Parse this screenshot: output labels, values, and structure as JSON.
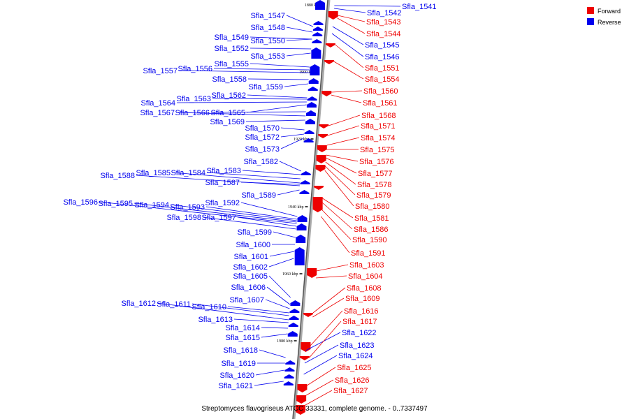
{
  "caption": "Streptomyces flavogriseus ATCC 33331, complete genome. - 0..7337497",
  "legend": [
    {
      "label": "Forward",
      "color": "#ee0000"
    },
    {
      "label": "Reverse",
      "color": "#0000ee"
    }
  ],
  "colors": {
    "forward": "#ee0000",
    "reverse": "#0000ee",
    "backbone": "#888888"
  },
  "ticks": [
    "1880 kbp",
    "1900 kbp",
    "1920 kbp",
    "1940 kbp",
    "1960 kbp",
    "1980 kbp"
  ],
  "genes_reverse_left": [
    "Sfla_1547",
    "Sfla_1548",
    "Sfla_1549",
    "Sfla_1550",
    "Sfla_1552",
    "Sfla_1553",
    "Sfla_1555",
    "Sfla_1556",
    "Sfla_1557",
    "Sfla_1558",
    "Sfla_1559",
    "Sfla_1562",
    "Sfla_1563",
    "Sfla_1564",
    "Sfla_1565",
    "Sfla_1566",
    "Sfla_1567",
    "Sfla_1569",
    "Sfla_1570",
    "Sfla_1572",
    "Sfla_1573",
    "Sfla_1582",
    "Sfla_1583",
    "Sfla_1584",
    "Sfla_1585",
    "Sfla_1588",
    "Sfla_1587",
    "Sfla_1589",
    "Sfla_1592",
    "Sfla_1593",
    "Sfla_1594",
    "Sfla_1595",
    "Sfla_1596",
    "Sfla_1597",
    "Sfla_1598",
    "Sfla_1599",
    "Sfla_1600",
    "Sfla_1601",
    "Sfla_1602",
    "Sfla_1605",
    "Sfla_1606",
    "Sfla_1607",
    "Sfla_1610",
    "Sfla_1611",
    "Sfla_1612",
    "Sfla_1613",
    "Sfla_1614",
    "Sfla_1615",
    "Sfla_1618",
    "Sfla_1619",
    "Sfla_1620",
    "Sfla_1621"
  ],
  "genes_reverse_right": [
    "Sfla_1541",
    "Sfla_1542",
    "Sfla_1545",
    "Sfla_1546",
    "Sfla_1622",
    "Sfla_1623",
    "Sfla_1624"
  ],
  "genes_forward_right": [
    "Sfla_1543",
    "Sfla_1544",
    "Sfla_1551",
    "Sfla_1554",
    "Sfla_1560",
    "Sfla_1561",
    "Sfla_1568",
    "Sfla_1571",
    "Sfla_1574",
    "Sfla_1575",
    "Sfla_1576",
    "Sfla_1577",
    "Sfla_1578",
    "Sfla_1579",
    "Sfla_1580",
    "Sfla_1581",
    "Sfla_1586",
    "Sfla_1590",
    "Sfla_1591",
    "Sfla_1603",
    "Sfla_1604",
    "Sfla_1608",
    "Sfla_1609",
    "Sfla_1616",
    "Sfla_1617",
    "Sfla_1625",
    "Sfla_1626",
    "Sfla_1627"
  ]
}
